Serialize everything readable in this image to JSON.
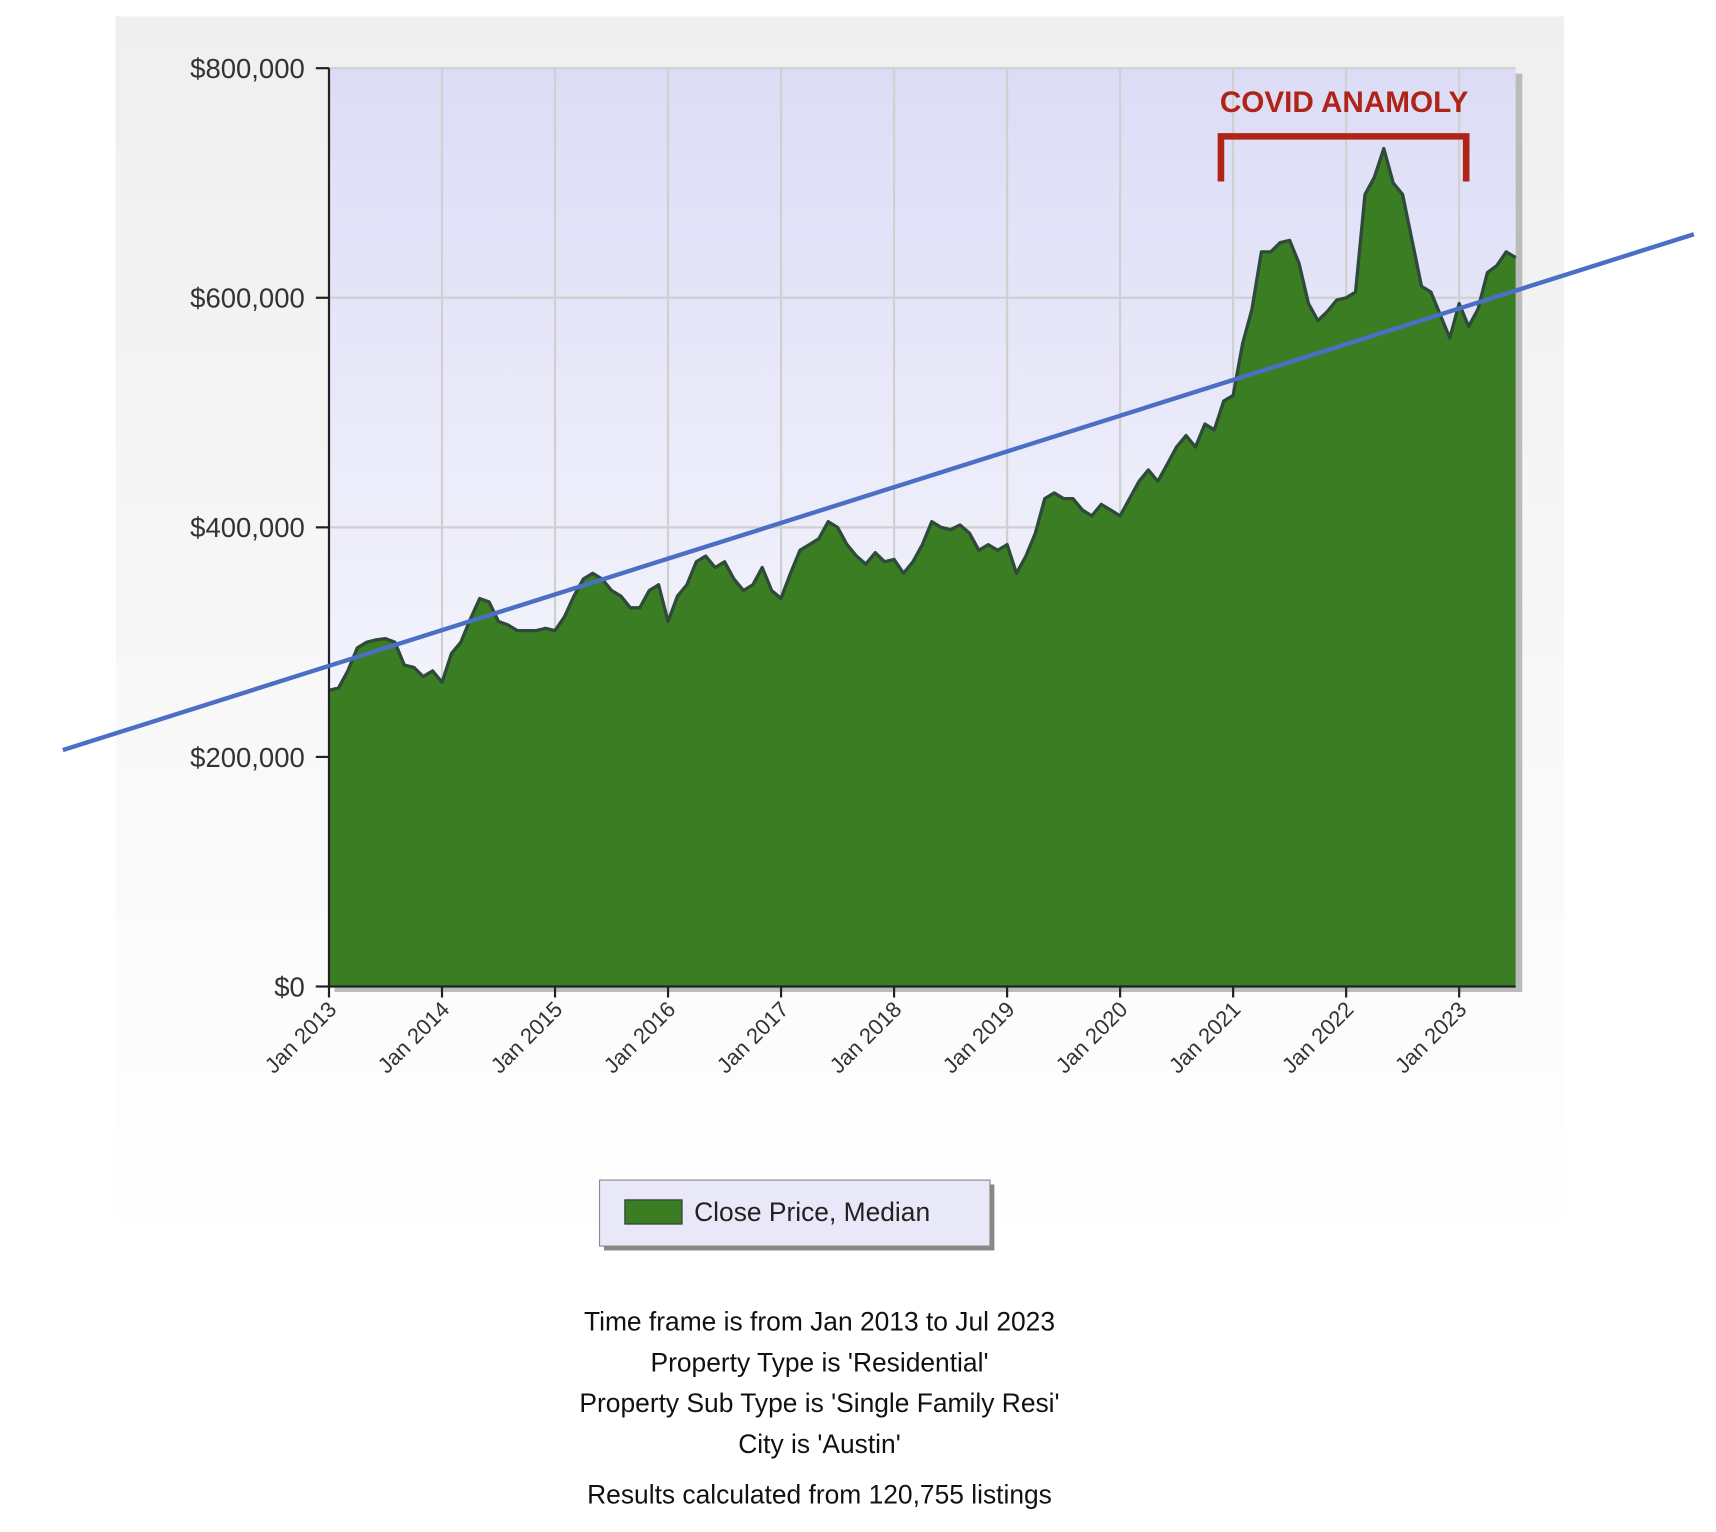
{
  "chart_data": {
    "type": "area",
    "annotation": "COVID ANAMOLY",
    "series": [
      {
        "name": "Close Price, Median",
        "color": "#3a7d22",
        "values": [
          258000,
          260000,
          275000,
          295000,
          300000,
          302000,
          303000,
          300000,
          280000,
          278000,
          270000,
          275000,
          265000,
          290000,
          300000,
          320000,
          338000,
          335000,
          318000,
          315000,
          310000,
          310000,
          310000,
          312000,
          310000,
          322000,
          340000,
          355000,
          360000,
          355000,
          345000,
          340000,
          330000,
          330000,
          345000,
          350000,
          318000,
          340000,
          350000,
          370000,
          375000,
          365000,
          370000,
          355000,
          345000,
          350000,
          365000,
          345000,
          338000,
          360000,
          380000,
          385000,
          390000,
          405000,
          400000,
          385000,
          375000,
          368000,
          378000,
          370000,
          372000,
          360000,
          370000,
          385000,
          405000,
          400000,
          398000,
          402000,
          395000,
          380000,
          385000,
          380000,
          385000,
          360000,
          375000,
          395000,
          425000,
          430000,
          425000,
          425000,
          415000,
          410000,
          420000,
          415000,
          410000,
          425000,
          440000,
          450000,
          440000,
          455000,
          470000,
          480000,
          470000,
          490000,
          485000,
          510000,
          515000,
          560000,
          590000,
          640000,
          640000,
          648000,
          650000,
          630000,
          595000,
          580000,
          588000,
          598000,
          600000,
          605000,
          690000,
          705000,
          730000,
          700000,
          690000,
          650000,
          610000,
          605000,
          585000,
          565000,
          595000,
          575000,
          590000,
          622000,
          628000,
          640000,
          635000
        ]
      }
    ],
    "xlim": [
      0,
      126
    ],
    "xticks": [
      {
        "value": 0,
        "label": "Jan 2013"
      },
      {
        "value": 12,
        "label": "Jan 2014"
      },
      {
        "value": 24,
        "label": "Jan 2015"
      },
      {
        "value": 36,
        "label": "Jan 2016"
      },
      {
        "value": 48,
        "label": "Jan 2017"
      },
      {
        "value": 60,
        "label": "Jan 2018"
      },
      {
        "value": 72,
        "label": "Jan 2019"
      },
      {
        "value": 84,
        "label": "Jan 2020"
      },
      {
        "value": 96,
        "label": "Jan 2021"
      },
      {
        "value": 108,
        "label": "Jan 2022"
      },
      {
        "value": 120,
        "label": "Jan 2023"
      }
    ],
    "ylim": [
      0,
      800000
    ],
    "yticks": [
      {
        "value": 0,
        "label": "$0"
      },
      {
        "value": 200000,
        "label": "$200,000"
      },
      {
        "value": 400000,
        "label": "$400,000"
      },
      {
        "value": 600000,
        "label": "$600,000"
      },
      {
        "value": 800000,
        "label": "$800,000"
      }
    ],
    "grid": true,
    "footer": [
      "Time frame is from Jan 2013 to Jul 2023",
      "Property Type is 'Residential'",
      "Property Sub Type is 'Single Family Resi'",
      "City is 'Austin'",
      "Results calculated from 120,755 listings"
    ]
  }
}
